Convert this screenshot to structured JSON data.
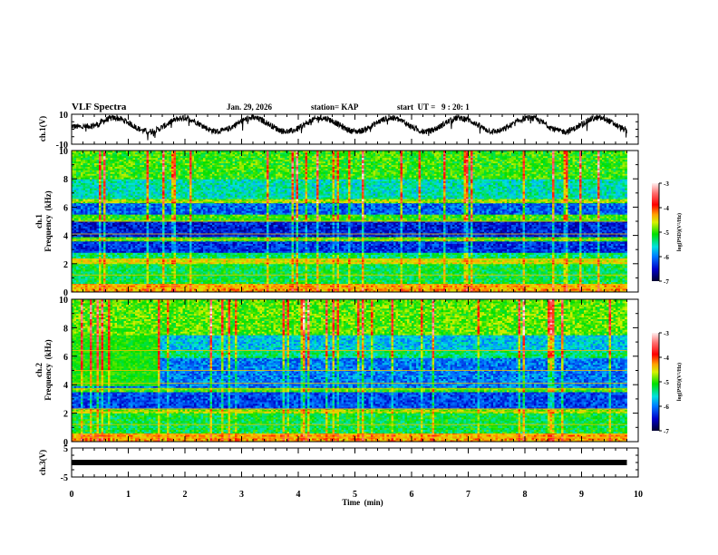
{
  "chart_data": {
    "type": "heatmap",
    "title": "VLF Spectra",
    "date": "Jan. 29, 2026",
    "station": "station= KAP",
    "start_ut": "start  UT =   9 : 20: 1",
    "xlabel": "Time  (min)",
    "xlim": [
      0,
      10
    ],
    "x_ticks": [
      "0",
      "1",
      "2",
      "3",
      "4",
      "5",
      "6",
      "7",
      "8",
      "9",
      "10"
    ],
    "data_end_min": 9.8,
    "panels": [
      {
        "id": "ch1-wave",
        "type": "line",
        "ylabel": "ch.1(V)",
        "ylim": [
          -10,
          10
        ],
        "y_ticks": [
          "10",
          "-10"
        ],
        "description_values": "oscillating waveform, ~1.2 min period, range approx -8 to 8 V"
      },
      {
        "id": "ch1-spec",
        "type": "heatmap",
        "ylabel_line1": "ch.1",
        "ylabel_line2": "Frequency  (kHz)",
        "ylim": [
          0,
          10
        ],
        "y_ticks": [
          "0",
          "2",
          "4",
          "6",
          "8",
          "10"
        ],
        "bands": [
          {
            "f0": 0.0,
            "f1": 0.6,
            "level": -4.3
          },
          {
            "f0": 0.6,
            "f1": 2.0,
            "level": -5.2
          },
          {
            "f0": 2.0,
            "f1": 2.4,
            "level": -4.6
          },
          {
            "f0": 2.4,
            "f1": 2.8,
            "level": -5.3
          },
          {
            "f0": 2.8,
            "f1": 3.6,
            "level": -6.3
          },
          {
            "f0": 3.6,
            "f1": 3.9,
            "level": -5.0
          },
          {
            "f0": 3.9,
            "f1": 5.0,
            "level": -6.4
          },
          {
            "f0": 5.0,
            "f1": 5.5,
            "level": -5.0
          },
          {
            "f0": 5.5,
            "f1": 6.3,
            "level": -6.1
          },
          {
            "f0": 6.3,
            "f1": 6.6,
            "level": -4.8
          },
          {
            "f0": 6.6,
            "f1": 8.0,
            "level": -5.5
          },
          {
            "f0": 8.0,
            "f1": 10.0,
            "level": -5.0
          }
        ]
      },
      {
        "id": "ch2-spec",
        "type": "heatmap",
        "ylabel_line1": "ch.2",
        "ylabel_line2": "Frequency  (kHz)",
        "ylim": [
          0,
          10
        ],
        "y_ticks": [
          "0",
          "2",
          "4",
          "6",
          "8",
          "10"
        ],
        "bands": [
          {
            "f0": 0.0,
            "f1": 0.6,
            "level": -4.3
          },
          {
            "f0": 0.6,
            "f1": 2.0,
            "level": -5.2
          },
          {
            "f0": 2.0,
            "f1": 2.3,
            "level": -4.8
          },
          {
            "f0": 2.3,
            "f1": 3.5,
            "level": -6.2
          },
          {
            "f0": 3.5,
            "f1": 3.8,
            "level": -5.0
          },
          {
            "f0": 3.8,
            "f1": 5.9,
            "level": -6.0
          },
          {
            "f0": 5.9,
            "f1": 6.4,
            "level": -5.3
          },
          {
            "f0": 6.4,
            "f1": 7.5,
            "level": -5.7
          },
          {
            "f0": 7.5,
            "f1": 10.0,
            "level": -4.9
          }
        ],
        "quiet_until_min": 1.55
      },
      {
        "id": "ch3-wave",
        "type": "line",
        "ylabel": "ch.3(V)",
        "ylim": [
          -5,
          5
        ],
        "y_ticks": [
          "5",
          "-5"
        ],
        "constant_value": 0
      }
    ],
    "colorbar": {
      "label": "log(PSD)(V²/Hz)",
      "range": [
        -7,
        -3
      ],
      "ticks": [
        "-3",
        "-4",
        "-5",
        "-6",
        "-7"
      ]
    }
  }
}
